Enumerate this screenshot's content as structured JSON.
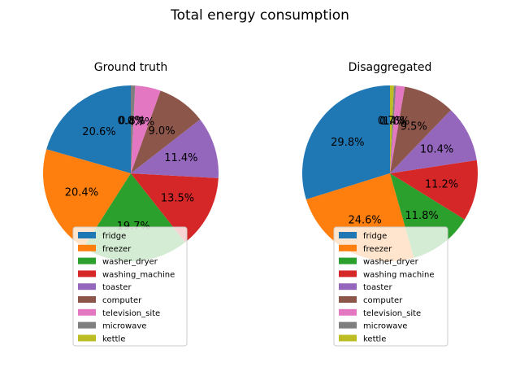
{
  "figure": {
    "title": "Total energy consumption"
  },
  "colors": {
    "fridge": "#1f77b4",
    "freezer": "#ff7f0e",
    "washer_dryer": "#2ca02c",
    "washing_machine": "#d62728",
    "toaster": "#9467bd",
    "computer": "#8c564b",
    "television_site": "#e377c2",
    "microwave": "#7f7f7f",
    "kettle": "#bcbd22"
  },
  "chart_data": [
    {
      "type": "pie",
      "title": "Ground truth",
      "labels": [
        "fridge",
        "freezer",
        "washer_dryer",
        "washing_machine",
        "toaster",
        "computer",
        "television_site",
        "microwave",
        "kettle"
      ],
      "legend_labels": [
        "fridge",
        "freezer",
        "washer_dryer",
        "washing_machine",
        "toaster",
        "computer",
        "television_site",
        "microwave",
        "kettle"
      ],
      "values": [
        20.6,
        20.4,
        19.7,
        13.5,
        11.4,
        9.0,
        4.7,
        0.8,
        0.0
      ],
      "pct_labels": [
        "20.6%",
        "20.4%",
        "19.7%",
        "13.5%",
        "11.4%",
        "9.0%",
        "4.7%",
        "0.8%",
        "0.0%"
      ],
      "start_angle": 90,
      "legend_position": "lower center"
    },
    {
      "type": "pie",
      "title": "Disaggregated",
      "labels": [
        "fridge",
        "freezer",
        "washer_dryer",
        "washing_machine",
        "toaster",
        "computer",
        "television_site",
        "microwave",
        "kettle"
      ],
      "legend_labels": [
        "fridge",
        "freezer",
        "washer_dryer",
        "washing machine",
        "toaster",
        "computer",
        "television_site",
        "microwave",
        "kettle"
      ],
      "values": [
        29.8,
        24.6,
        11.8,
        11.2,
        10.4,
        9.5,
        1.6,
        0.4,
        0.7
      ],
      "pct_labels": [
        "29.8%",
        "24.6%",
        "11.8%",
        "11.2%",
        "10.4%",
        "9.5%",
        "1.6%",
        "0.4%",
        "0.7%"
      ],
      "start_angle": 90,
      "legend_position": "lower center"
    }
  ]
}
